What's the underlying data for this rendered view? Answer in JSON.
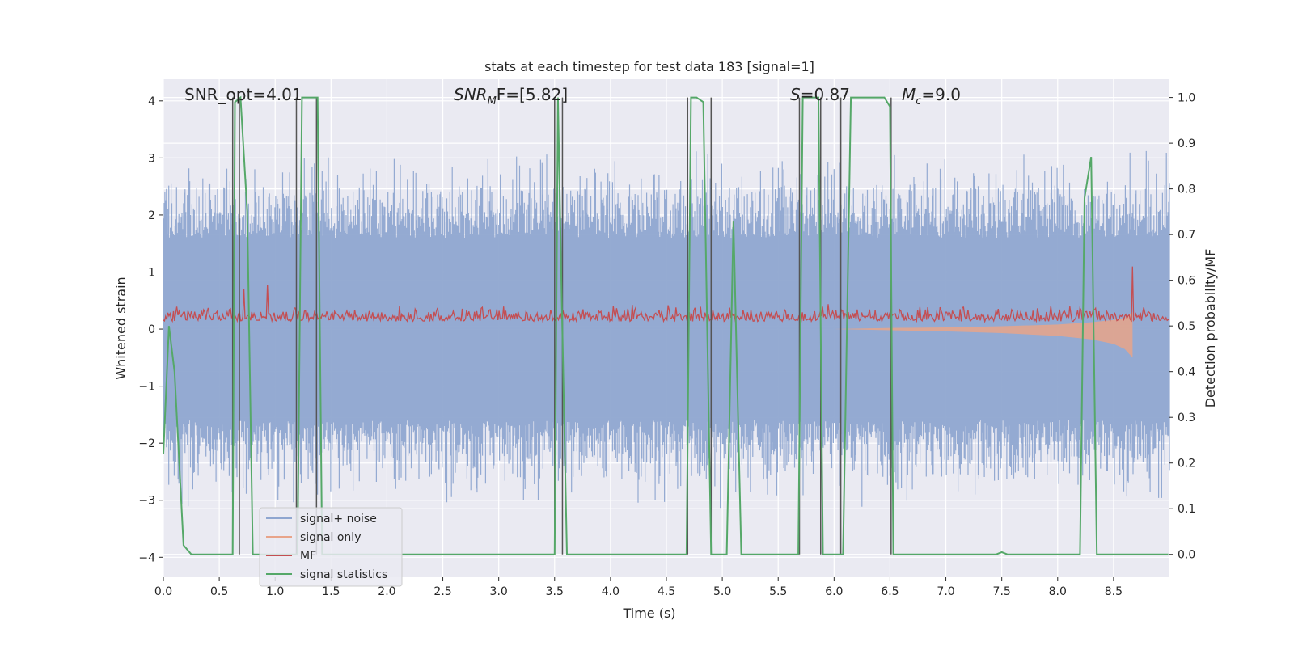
{
  "chart_data": {
    "type": "line",
    "title": "stats at each timestep for test data 183 [signal=1]",
    "xlabel": "Time (s)",
    "ylabel": "Whitened strain",
    "ylabel_right": "Detection probability/MF",
    "xlim": [
      0.0,
      9.0
    ],
    "ylim": [
      -4.35,
      4.38
    ],
    "ylim_right": [
      -0.05,
      1.04
    ],
    "x_ticks": [
      0.0,
      0.5,
      1.0,
      1.5,
      2.0,
      2.5,
      3.0,
      3.5,
      4.0,
      4.5,
      5.0,
      5.5,
      6.0,
      6.5,
      7.0,
      7.5,
      8.0,
      8.5
    ],
    "x_tick_labels": [
      "0.0",
      "0.5",
      "1.0",
      "1.5",
      "2.0",
      "2.5",
      "3.0",
      "3.5",
      "4.0",
      "4.5",
      "5.0",
      "5.5",
      "6.0",
      "6.5",
      "7.0",
      "7.5",
      "8.0",
      "8.5"
    ],
    "y_ticks": [
      -4,
      -3,
      -2,
      -1,
      0,
      1,
      2,
      3,
      4
    ],
    "y_tick_labels": [
      "−4",
      "−3",
      "−2",
      "−1",
      "0",
      "1",
      "2",
      "3",
      "4"
    ],
    "y_right_ticks": [
      0.0,
      0.1,
      0.2,
      0.3,
      0.4,
      0.5,
      0.6,
      0.7,
      0.8,
      0.9,
      1.0
    ],
    "y_right_tick_labels": [
      "0.0",
      "0.1",
      "0.2",
      "0.3",
      "0.4",
      "0.5",
      "0.6",
      "0.7",
      "0.8",
      "0.9",
      "1.0"
    ],
    "grid": true,
    "legend_position": "lower-left",
    "annotations": {
      "snr_opt": "SNR_opt=4.01",
      "snr_mf_label": "SNR",
      "snr_mf_sub": "M",
      "snr_mf_rest": "F=[5.82]",
      "s_label": "S",
      "s_rest": "=0.87",
      "mc_label": "M",
      "mc_sub": "c",
      "mc_rest": "=9.0"
    },
    "series": [
      {
        "name": "signal+ noise",
        "color": "#8fa6d0",
        "axis": "left",
        "description": "noise band",
        "envelope_typical": [
          -1.6,
          1.6
        ],
        "envelope_peak": [
          -3.7,
          3.5
        ]
      },
      {
        "name": "signal only",
        "color": "#e8a48a",
        "axis": "left",
        "x": [
          6.0,
          6.5,
          7.0,
          7.5,
          8.0,
          8.3,
          8.5,
          8.6,
          8.67
        ],
        "lower": [
          0.0,
          -0.02,
          -0.04,
          -0.07,
          -0.12,
          -0.18,
          -0.26,
          -0.35,
          -0.5
        ],
        "upper": [
          0.0,
          0.02,
          0.03,
          0.05,
          0.08,
          0.12,
          0.16,
          0.2,
          0.3
        ]
      },
      {
        "name": "MF",
        "color": "#c44e52",
        "axis": "right",
        "typical_range": [
          0.5,
          0.58
        ],
        "peaks": [
          {
            "x": 0.93,
            "y": 0.59
          },
          {
            "x": 0.72,
            "y": 0.58
          },
          {
            "x": 8.67,
            "y": 0.63
          }
        ]
      },
      {
        "name": "signal statistics",
        "color": "#55a868",
        "axis": "right",
        "x": [
          0.0,
          0.05,
          0.1,
          0.18,
          0.25,
          0.4,
          0.62,
          0.64,
          0.69,
          0.75,
          0.8,
          0.86,
          1.0,
          1.15,
          1.2,
          1.24,
          1.27,
          1.38,
          1.42,
          1.45,
          1.5,
          2.0,
          3.0,
          3.5,
          3.53,
          3.56,
          3.61,
          3.7,
          4.0,
          4.68,
          4.72,
          4.77,
          4.83,
          4.9,
          4.95,
          5.04,
          5.1,
          5.17,
          5.3,
          5.68,
          5.72,
          5.86,
          5.9,
          6.05,
          6.08,
          6.15,
          6.2,
          6.45,
          6.5,
          6.53,
          6.6,
          7.0,
          7.45,
          7.5,
          7.55,
          8.2,
          8.24,
          8.3,
          8.35,
          8.5,
          8.99
        ],
        "y": [
          0.22,
          0.5,
          0.4,
          0.02,
          0.0,
          0.0,
          0.0,
          0.99,
          1.0,
          0.75,
          0.0,
          0.0,
          0.0,
          0.0,
          0.0,
          1.0,
          1.0,
          1.0,
          0.0,
          0.0,
          0.0,
          0.0,
          0.0,
          0.0,
          1.0,
          0.6,
          0.0,
          0.0,
          0.0,
          0.0,
          1.0,
          1.0,
          0.99,
          0.0,
          0.0,
          0.0,
          0.73,
          0.0,
          0.0,
          0.0,
          1.0,
          1.0,
          0.0,
          0.0,
          0.0,
          1.0,
          1.0,
          1.0,
          0.98,
          0.0,
          0.0,
          0.0,
          0.0,
          0.005,
          0.0,
          0.0,
          0.78,
          0.87,
          0.0,
          0.0,
          0.0
        ]
      }
    ],
    "vertical_lines": {
      "color": "#555555",
      "x": [
        0.62,
        0.68,
        1.19,
        1.37,
        3.5,
        3.57,
        4.69,
        4.9,
        5.69,
        5.88,
        6.06,
        6.51
      ]
    }
  }
}
